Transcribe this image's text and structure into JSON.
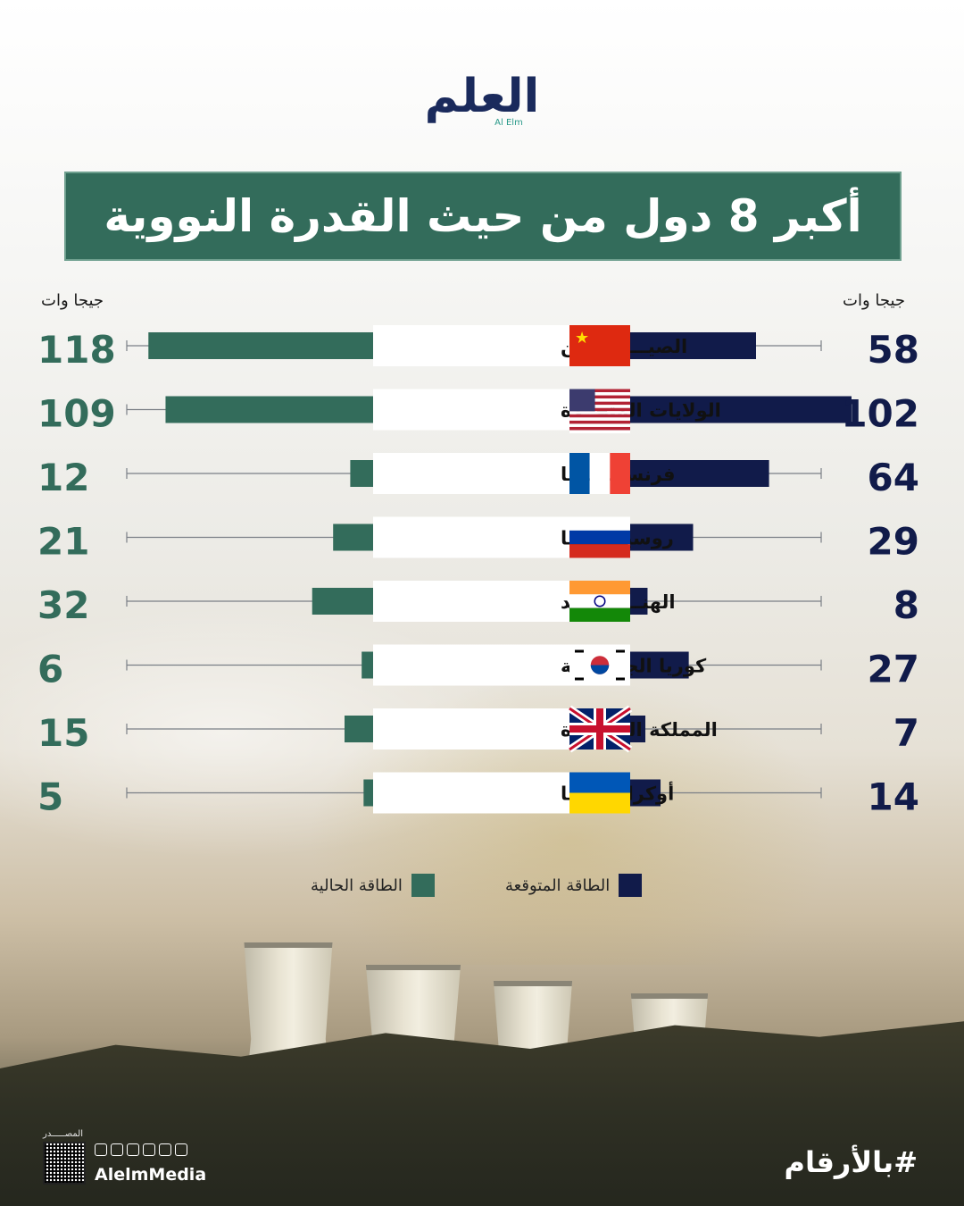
{
  "logo": {
    "arabic": "العلم",
    "latin": "Al Elm"
  },
  "title": "أكبر 8 دول من حيث القدرة النووية",
  "units": {
    "left": "جيجا وات",
    "right": "جيجا وات"
  },
  "legend": {
    "current": "الطاقة الحالية",
    "projected": "الطاقة المتوقعة"
  },
  "colors": {
    "current": "#336c5b",
    "projected": "#111b4a",
    "title_bg": "#336c5b"
  },
  "chart_data": {
    "type": "bar",
    "categories": [
      "الصيـــــــــــن",
      "الولايات المتحــدة",
      "فرنســـــــــا",
      "روسيـــــــــا",
      "الهنـــــــــــد",
      "كوريا الجنوبيـــة",
      "المملكة المتحــدة",
      "أوكرانيـــــــا"
    ],
    "flags": [
      "china-flag",
      "usa-flag",
      "france-flag",
      "russia-flag",
      "india-flag",
      "south-korea-flag",
      "uk-flag",
      "ukraine-flag"
    ],
    "series": [
      {
        "name": "الطاقة الحالية",
        "values": [
          118,
          109,
          12,
          21,
          32,
          6,
          15,
          5
        ]
      },
      {
        "name": "الطاقة المتوقعة",
        "values": [
          58,
          102,
          64,
          29,
          8,
          27,
          7,
          14
        ]
      }
    ],
    "xlim": [
      0,
      120
    ]
  },
  "footer": {
    "source_label": "المصـــــدر",
    "handle": "AlelmMedia",
    "hashtag": "#بالأرقام"
  }
}
